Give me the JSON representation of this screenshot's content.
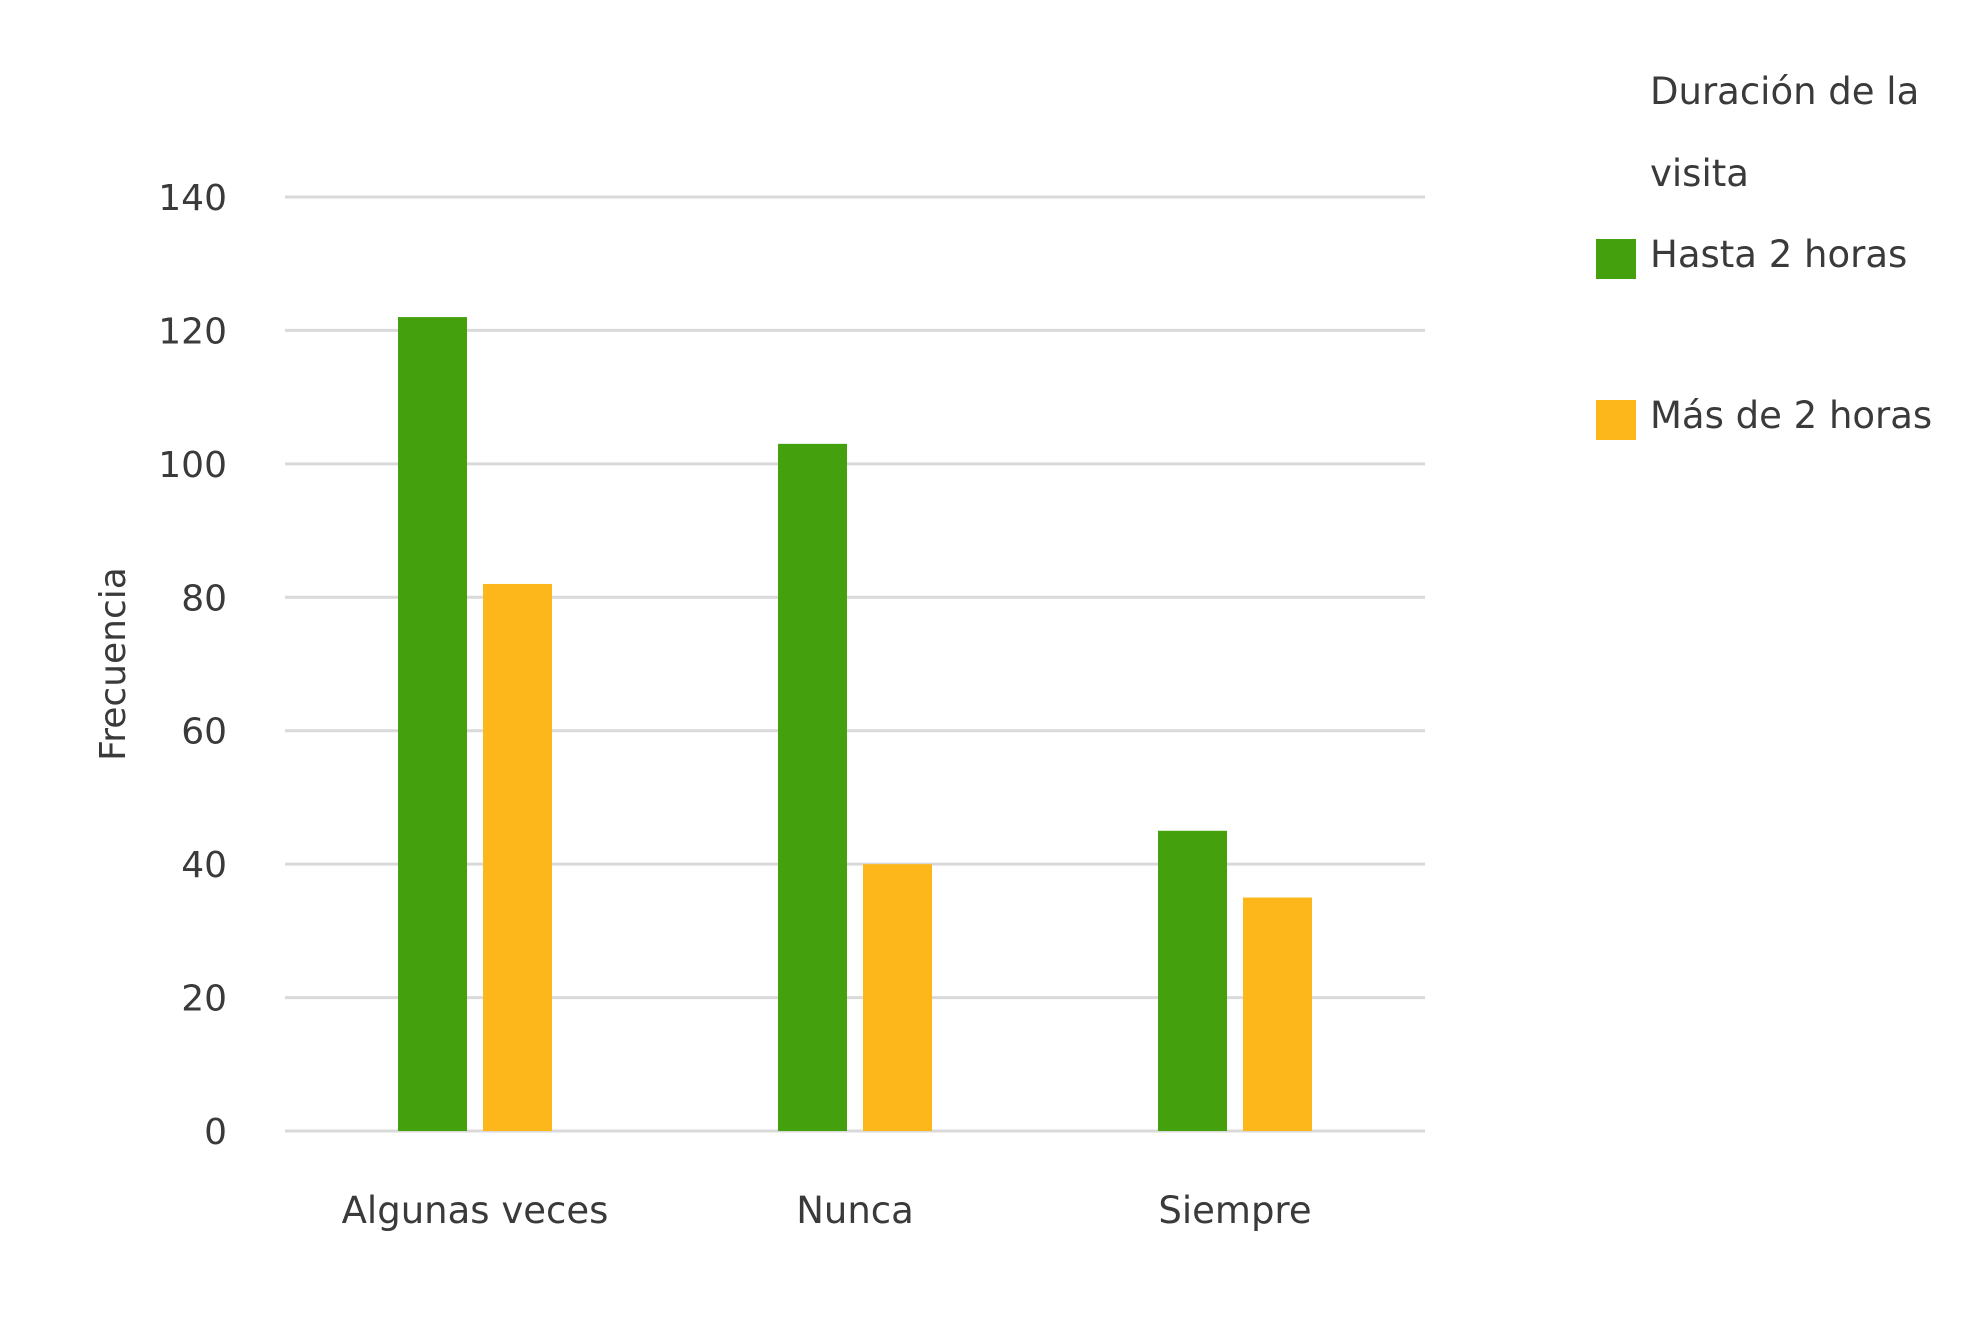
{
  "chart_data": {
    "type": "bar",
    "categories": [
      "Algunas veces",
      "Nunca",
      "Siempre"
    ],
    "series": [
      {
        "name": "Hasta 2 horas",
        "values": [
          122,
          103,
          45
        ],
        "color": "#45a00d"
      },
      {
        "name": "Más de 2 horas",
        "values": [
          82,
          40,
          35
        ],
        "color": "#fdb71b"
      }
    ],
    "ylabel": "Frecuencia",
    "xlabel": "",
    "ylim": [
      0,
      140
    ],
    "yticks": [
      0,
      20,
      40,
      60,
      80,
      100,
      120,
      140
    ],
    "grid": true,
    "legend": {
      "title_line1": "Duración de la",
      "title_line2": "visita",
      "position": "right"
    }
  }
}
